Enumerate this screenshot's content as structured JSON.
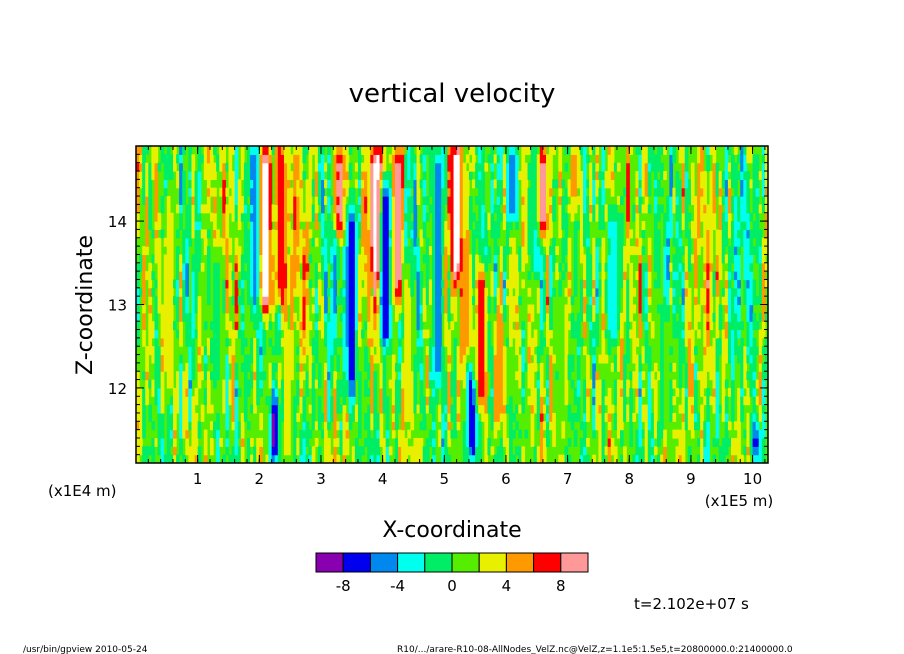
{
  "chart_data": {
    "type": "heatmap",
    "title": "vertical velocity",
    "xlabel": "X-coordinate",
    "ylabel": "Z-coordinate",
    "x_unit": "(x1E5 m)",
    "y_unit": "(x1E4 m)",
    "xlim": [
      0,
      10.25
    ],
    "ylim": [
      11.1,
      14.9
    ],
    "x_ticks": [
      {
        "value": 1,
        "label": "1"
      },
      {
        "value": 2,
        "label": "2"
      },
      {
        "value": 3,
        "label": "3"
      },
      {
        "value": 4,
        "label": "4"
      },
      {
        "value": 5,
        "label": "5"
      },
      {
        "value": 6,
        "label": "6"
      },
      {
        "value": 7,
        "label": "7"
      },
      {
        "value": 8,
        "label": "8"
      },
      {
        "value": 9,
        "label": "9"
      },
      {
        "value": 10,
        "label": "10"
      }
    ],
    "y_ticks": [
      {
        "value": 12,
        "label": "12"
      },
      {
        "value": 13,
        "label": "13"
      },
      {
        "value": 14,
        "label": "14"
      }
    ],
    "colorbar": {
      "levels": [
        -10,
        -8,
        -6,
        -4,
        -2,
        0,
        2,
        4,
        6,
        8,
        10
      ],
      "tick_labels": [
        {
          "value": -8,
          "label": "-8"
        },
        {
          "value": -4,
          "label": "-4"
        },
        {
          "value": 0,
          "label": "0"
        },
        {
          "value": 4,
          "label": "4"
        },
        {
          "value": 8,
          "label": "8"
        }
      ],
      "colors": [
        "#8800b0",
        "#0000ee",
        "#0088ee",
        "#00ffee",
        "#00ee66",
        "#55ee00",
        "#e8f000",
        "#ff9900",
        "#ff0000",
        "#ff9999"
      ]
    },
    "background_color": "#55ee00",
    "features": [
      {
        "x": 1.95,
        "z_from": 13.0,
        "z_to": 14.9,
        "value": -6
      },
      {
        "x": 2.1,
        "z_from": 12.9,
        "z_to": 14.9,
        "value": 12
      },
      {
        "x": 2.35,
        "z_from": 13.0,
        "z_to": 14.9,
        "value": 8
      },
      {
        "x": 2.25,
        "z_from": 11.1,
        "z_to": 11.9,
        "value": -9
      },
      {
        "x": 2.45,
        "z_from": 11.1,
        "z_to": 12.5,
        "value": 3
      },
      {
        "x": 3.5,
        "z_from": 11.9,
        "z_to": 14.2,
        "value": -7
      },
      {
        "x": 3.3,
        "z_from": 13.8,
        "z_to": 14.9,
        "value": 9
      },
      {
        "x": 3.9,
        "z_from": 13.3,
        "z_to": 14.9,
        "value": 12
      },
      {
        "x": 4.05,
        "z_from": 12.5,
        "z_to": 14.5,
        "value": -8
      },
      {
        "x": 4.25,
        "z_from": 13.0,
        "z_to": 14.9,
        "value": 9
      },
      {
        "x": 4.4,
        "z_from": 11.5,
        "z_to": 13.3,
        "value": 3
      },
      {
        "x": 4.9,
        "z_from": 12.0,
        "z_to": 14.9,
        "value": -5
      },
      {
        "x": 5.2,
        "z_from": 13.3,
        "z_to": 14.9,
        "value": 12
      },
      {
        "x": 5.35,
        "z_from": 12.4,
        "z_to": 13.8,
        "value": 6
      },
      {
        "x": 5.45,
        "z_from": 11.1,
        "z_to": 12.2,
        "value": -8
      },
      {
        "x": 5.6,
        "z_from": 11.8,
        "z_to": 13.4,
        "value": 8
      },
      {
        "x": 5.9,
        "z_from": 11.5,
        "z_to": 12.9,
        "value": 5
      },
      {
        "x": 6.1,
        "z_from": 14.0,
        "z_to": 14.9,
        "value": -6
      },
      {
        "x": 6.5,
        "z_from": 13.3,
        "z_to": 14.9,
        "value": -4
      },
      {
        "x": 6.6,
        "z_from": 13.8,
        "z_to": 14.9,
        "value": 9
      },
      {
        "x": 6.9,
        "z_from": 11.1,
        "z_to": 13.0,
        "value": 2
      },
      {
        "x": 7.1,
        "z_from": 14.2,
        "z_to": 14.9,
        "value": 5
      },
      {
        "x": 7.75,
        "z_from": 12.6,
        "z_to": 14.1,
        "value": -4
      },
      {
        "x": 8.6,
        "z_from": 11.5,
        "z_to": 13.0,
        "value": 0.5
      },
      {
        "x": 0.55,
        "z_from": 11.9,
        "z_to": 14.2,
        "value": 3
      },
      {
        "x": 1.3,
        "z_from": 12.0,
        "z_to": 13.6,
        "value": -1
      },
      {
        "x": 10.05,
        "z_from": 11.1,
        "z_to": 11.6,
        "value": -7
      }
    ],
    "time_label": "t=2.102e+07 s"
  },
  "footer": {
    "left": "/usr/bin/gpview  2010-05-24",
    "right": "R10/.../arare-R10-08-AllNodes_VelZ.nc@VelZ,z=1.1e5:1.5e5,t=20800000.0:21400000.0"
  }
}
